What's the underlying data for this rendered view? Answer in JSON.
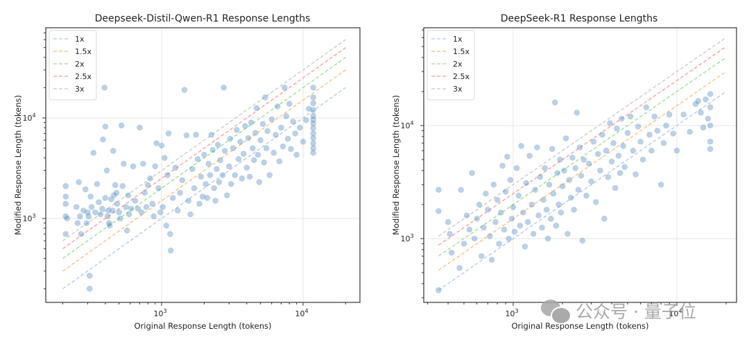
{
  "chart_data": [
    {
      "type": "scatter",
      "title": "Deepseek-Distil-Qwen-R1 Response Lengths",
      "xlabel": "Original Response Length (tokens)",
      "ylabel": "Modified Response Length (tokens)",
      "xscale": "log",
      "yscale": "log",
      "xlim": [
        150,
        25000
      ],
      "ylim": [
        150,
        70000
      ],
      "xticks": [
        {
          "value": 1000,
          "base": "10",
          "exp": "3"
        },
        {
          "value": 10000,
          "base": "10",
          "exp": "4"
        }
      ],
      "yticks": [
        {
          "value": 1000,
          "base": "10",
          "exp": "3"
        },
        {
          "value": 10000,
          "base": "10",
          "exp": "4"
        }
      ],
      "grid": true,
      "legend_position": "top-left",
      "reference_lines": [
        {
          "label": "1x",
          "factor": 1,
          "color": "#aec7e8"
        },
        {
          "label": "1.5x",
          "factor": 1.5,
          "color": "#ffbb78"
        },
        {
          "label": "2x",
          "factor": 2,
          "color": "#98df8a"
        },
        {
          "label": "2.5x",
          "factor": 2.5,
          "color": "#ff9896"
        },
        {
          "label": "3x",
          "factor": 3,
          "color": "#c7c7c7"
        }
      ],
      "reference_x_range": [
        200,
        20000
      ],
      "point_color": "#4a86c0",
      "points": [
        [
          210,
          1050
        ],
        [
          210,
          1650
        ],
        [
          210,
          2100
        ],
        [
          210,
          1400
        ],
        [
          210,
          700
        ],
        [
          215,
          1000
        ],
        [
          250,
          1300
        ],
        [
          255,
          900
        ],
        [
          260,
          2300
        ],
        [
          265,
          1050
        ],
        [
          270,
          700
        ],
        [
          280,
          1200
        ],
        [
          290,
          1950
        ],
        [
          295,
          900
        ],
        [
          300,
          1150
        ],
        [
          305,
          1050
        ],
        [
          310,
          270
        ],
        [
          310,
          200
        ],
        [
          315,
          1650
        ],
        [
          320,
          1300
        ],
        [
          330,
          4500
        ],
        [
          340,
          1150
        ],
        [
          350,
          2200
        ],
        [
          360,
          1450
        ],
        [
          370,
          1100
        ],
        [
          380,
          1250
        ],
        [
          385,
          6100
        ],
        [
          395,
          20000
        ],
        [
          400,
          8200
        ],
        [
          400,
          1600
        ],
        [
          410,
          3000
        ],
        [
          415,
          1050
        ],
        [
          420,
          1200
        ],
        [
          425,
          900
        ],
        [
          430,
          850
        ],
        [
          440,
          1550
        ],
        [
          450,
          1200
        ],
        [
          455,
          4700
        ],
        [
          460,
          1700
        ],
        [
          470,
          2150
        ],
        [
          480,
          1800
        ],
        [
          485,
          1400
        ],
        [
          500,
          1150
        ],
        [
          510,
          1000
        ],
        [
          520,
          8400
        ],
        [
          530,
          2100
        ],
        [
          540,
          3500
        ],
        [
          560,
          1300
        ],
        [
          570,
          760
        ],
        [
          580,
          1700
        ],
        [
          590,
          1100
        ],
        [
          610,
          1250
        ],
        [
          630,
          3300
        ],
        [
          650,
          1500
        ],
        [
          680,
          1250
        ],
        [
          700,
          8000
        ],
        [
          720,
          1150
        ],
        [
          740,
          3500
        ],
        [
          760,
          1800
        ],
        [
          780,
          1300
        ],
        [
          800,
          2150
        ],
        [
          830,
          2500
        ],
        [
          860,
          1400
        ],
        [
          880,
          1050
        ],
        [
          900,
          3300
        ],
        [
          920,
          5600
        ],
        [
          950,
          2000
        ],
        [
          980,
          1150
        ],
        [
          1000,
          5300
        ],
        [
          1020,
          1300
        ],
        [
          1050,
          4000
        ],
        [
          1080,
          850
        ],
        [
          1100,
          2700
        ],
        [
          1120,
          7000
        ],
        [
          1150,
          700
        ],
        [
          1160,
          480
        ],
        [
          1200,
          1600
        ],
        [
          1250,
          3200
        ],
        [
          1300,
          1200
        ],
        [
          1350,
          1800
        ],
        [
          1400,
          2400
        ],
        [
          1450,
          19000
        ],
        [
          1500,
          6700
        ],
        [
          1550,
          1500
        ],
        [
          1600,
          1100
        ],
        [
          1650,
          3100
        ],
        [
          1700,
          2000
        ],
        [
          1750,
          6800
        ],
        [
          1800,
          3900
        ],
        [
          1850,
          1400
        ],
        [
          1900,
          2600
        ],
        [
          1950,
          1650
        ],
        [
          2000,
          4300
        ],
        [
          2050,
          2200
        ],
        [
          2100,
          1600
        ],
        [
          2150,
          3500
        ],
        [
          2200,
          2700
        ],
        [
          2250,
          6800
        ],
        [
          2300,
          4800
        ],
        [
          2350,
          2000
        ],
        [
          2400,
          1500
        ],
        [
          2450,
          3100
        ],
        [
          2500,
          5400
        ],
        [
          2550,
          2300
        ],
        [
          2600,
          3800
        ],
        [
          2700,
          2700
        ],
        [
          2750,
          20000
        ],
        [
          2800,
          4700
        ],
        [
          2900,
          1700
        ],
        [
          3000,
          3300
        ],
        [
          3050,
          6200
        ],
        [
          3100,
          2200
        ],
        [
          3200,
          5000
        ],
        [
          3300,
          2700
        ],
        [
          3400,
          7600
        ],
        [
          3500,
          3900
        ],
        [
          3600,
          5800
        ],
        [
          3700,
          2500
        ],
        [
          3800,
          4400
        ],
        [
          3900,
          8300
        ],
        [
          4000,
          3200
        ],
        [
          4100,
          6300
        ],
        [
          4200,
          2600
        ],
        [
          4300,
          9000
        ],
        [
          4400,
          5000
        ],
        [
          4500,
          3800
        ],
        [
          4600,
          7100
        ],
        [
          4700,
          12500
        ],
        [
          4800,
          4300
        ],
        [
          4900,
          2300
        ],
        [
          5000,
          6000
        ],
        [
          5200,
          8700
        ],
        [
          5300,
          3600
        ],
        [
          5400,
          16000
        ],
        [
          5500,
          5000
        ],
        [
          5600,
          7400
        ],
        [
          5800,
          2700
        ],
        [
          6000,
          9700
        ],
        [
          6200,
          4500
        ],
        [
          6400,
          6800
        ],
        [
          6600,
          13000
        ],
        [
          6800,
          3700
        ],
        [
          7000,
          8000
        ],
        [
          7200,
          5200
        ],
        [
          7400,
          20000
        ],
        [
          7600,
          10400
        ],
        [
          7800,
          6200
        ],
        [
          8000,
          13800
        ],
        [
          8200,
          4900
        ],
        [
          8500,
          9200
        ],
        [
          8800,
          7000
        ],
        [
          9000,
          4300
        ],
        [
          9500,
          8000
        ],
        [
          10000,
          5800
        ],
        [
          10500,
          9500
        ],
        [
          11000,
          12300
        ],
        [
          11800,
          20000
        ],
        [
          11800,
          16000
        ],
        [
          11800,
          14000
        ],
        [
          11800,
          12000
        ],
        [
          11800,
          10500
        ],
        [
          11800,
          9600
        ],
        [
          11800,
          8800
        ],
        [
          11800,
          7900
        ],
        [
          11800,
          7000
        ],
        [
          11800,
          6300
        ],
        [
          11800,
          5600
        ],
        [
          11800,
          5000
        ],
        [
          11800,
          4500
        ]
      ]
    },
    {
      "type": "scatter",
      "title": "DeepSeek-R1 Response Lengths",
      "xlabel": "Original Response Length (tokens)",
      "ylabel": "Modified Response Length (tokens)",
      "xscale": "log",
      "yscale": "log",
      "xlim": [
        250,
        30000
      ],
      "ylim": [
        300,
        70000
      ],
      "xticks": [
        {
          "value": 1000,
          "base": "10",
          "exp": "3"
        },
        {
          "value": 10000,
          "base": "10",
          "exp": "4"
        }
      ],
      "yticks": [
        {
          "value": 1000,
          "base": "10",
          "exp": "3"
        },
        {
          "value": 10000,
          "base": "10",
          "exp": "4"
        }
      ],
      "grid": true,
      "legend_position": "top-left",
      "reference_lines": [
        {
          "label": "1x",
          "factor": 1,
          "color": "#aec7e8"
        },
        {
          "label": "1.5x",
          "factor": 1.5,
          "color": "#ffbb78"
        },
        {
          "label": "2x",
          "factor": 2,
          "color": "#98df8a"
        },
        {
          "label": "2.5x",
          "factor": 2.5,
          "color": "#ff9896"
        },
        {
          "label": "3x",
          "factor": 3,
          "color": "#c7c7c7"
        }
      ],
      "reference_x_range": [
        350,
        20000
      ],
      "point_color": "#4a86c0",
      "points": [
        [
          350,
          350
        ],
        [
          350,
          1750
        ],
        [
          350,
          2700
        ],
        [
          400,
          1400
        ],
        [
          410,
          1100
        ],
        [
          420,
          750
        ],
        [
          470,
          550
        ],
        [
          480,
          2700
        ],
        [
          500,
          900
        ],
        [
          520,
          1600
        ],
        [
          540,
          1200
        ],
        [
          560,
          3800
        ],
        [
          580,
          1000
        ],
        [
          600,
          1500
        ],
        [
          620,
          2000
        ],
        [
          640,
          700
        ],
        [
          660,
          1250
        ],
        [
          680,
          2500
        ],
        [
          700,
          1800
        ],
        [
          720,
          1050
        ],
        [
          740,
          650
        ],
        [
          760,
          3000
        ],
        [
          780,
          1400
        ],
        [
          800,
          2200
        ],
        [
          820,
          900
        ],
        [
          840,
          1700
        ],
        [
          860,
          4400
        ],
        [
          880,
          1200
        ],
        [
          900,
          2600
        ],
        [
          920,
          5300
        ],
        [
          940,
          1000
        ],
        [
          960,
          3300
        ],
        [
          980,
          1500
        ],
        [
          1000,
          1900
        ],
        [
          1020,
          1150
        ],
        [
          1050,
          4200
        ],
        [
          1080,
          2400
        ],
        [
          1100,
          1300
        ],
        [
          1120,
          6600
        ],
        [
          1150,
          1700
        ],
        [
          1180,
          850
        ],
        [
          1200,
          3100
        ],
        [
          1230,
          1400
        ],
        [
          1260,
          5400
        ],
        [
          1300,
          2000
        ],
        [
          1330,
          1100
        ],
        [
          1360,
          2700
        ],
        [
          1400,
          6400
        ],
        [
          1430,
          1600
        ],
        [
          1460,
          3500
        ],
        [
          1500,
          1250
        ],
        [
          1530,
          2200
        ],
        [
          1560,
          4200
        ],
        [
          1600,
          1800
        ],
        [
          1630,
          1000
        ],
        [
          1660,
          3000
        ],
        [
          1700,
          1500
        ],
        [
          1730,
          6200
        ],
        [
          1760,
          2500
        ],
        [
          1800,
          16000
        ],
        [
          1830,
          1300
        ],
        [
          1860,
          3800
        ],
        [
          1900,
          2000
        ],
        [
          1930,
          5000
        ],
        [
          1960,
          1700
        ],
        [
          2000,
          2900
        ],
        [
          2050,
          4000
        ],
        [
          2100,
          7700
        ],
        [
          2150,
          1100
        ],
        [
          2200,
          3300
        ],
        [
          2250,
          2300
        ],
        [
          2300,
          5200
        ],
        [
          2350,
          1800
        ],
        [
          2400,
          4200
        ],
        [
          2450,
          13000
        ],
        [
          2500,
          2700
        ],
        [
          2550,
          6400
        ],
        [
          2600,
          3600
        ],
        [
          2650,
          960
        ],
        [
          2700,
          5000
        ],
        [
          2800,
          2400
        ],
        [
          2900,
          4600
        ],
        [
          3000,
          3200
        ],
        [
          3100,
          7200
        ],
        [
          3200,
          2100
        ],
        [
          3300,
          5600
        ],
        [
          3400,
          4000
        ],
        [
          3500,
          8300
        ],
        [
          3600,
          1500
        ],
        [
          3700,
          6000
        ],
        [
          3800,
          3500
        ],
        [
          3900,
          10500
        ],
        [
          4000,
          4800
        ],
        [
          4100,
          7000
        ],
        [
          4200,
          2800
        ],
        [
          4300,
          9400
        ],
        [
          4400,
          5400
        ],
        [
          4500,
          3800
        ],
        [
          4600,
          11500
        ],
        [
          4700,
          6600
        ],
        [
          4800,
          4300
        ],
        [
          5000,
          8600
        ],
        [
          5200,
          12000
        ],
        [
          5400,
          6000
        ],
        [
          5600,
          3700
        ],
        [
          5800,
          9800
        ],
        [
          6000,
          7200
        ],
        [
          6200,
          5000
        ],
        [
          6500,
          14500
        ],
        [
          6800,
          8300
        ],
        [
          7000,
          6000
        ],
        [
          7300,
          12000
        ],
        [
          7600,
          9000
        ],
        [
          8000,
          3000
        ],
        [
          8300,
          7000
        ],
        [
          8600,
          10000
        ],
        [
          9000,
          12500
        ],
        [
          9500,
          8500
        ],
        [
          10000,
          6000
        ],
        [
          11000,
          12500
        ],
        [
          12000,
          8800
        ],
        [
          13000,
          15500
        ],
        [
          13500,
          16500
        ],
        [
          14000,
          13000
        ],
        [
          14500,
          9600
        ],
        [
          15000,
          17000
        ],
        [
          15500,
          11500
        ],
        [
          16000,
          19000
        ],
        [
          16000,
          14500
        ],
        [
          16000,
          10000
        ],
        [
          16000,
          7200
        ],
        [
          16000,
          6200
        ]
      ]
    }
  ],
  "watermark": {
    "text": "公众号 · 量子位",
    "icon": "wechat-icon"
  }
}
